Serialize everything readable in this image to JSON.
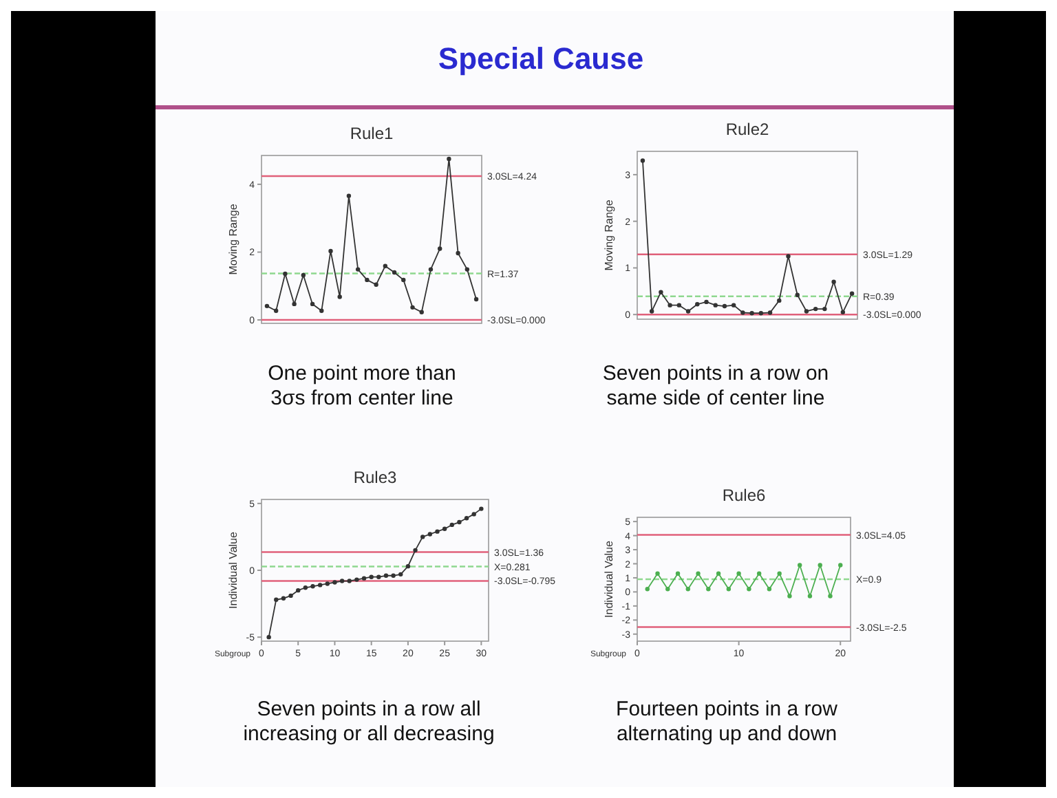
{
  "chart_data": [
    {
      "type": "line",
      "title": "Rule1",
      "ylabel": "Moving Range",
      "annotations": [
        "Special Cause",
        "One point more than",
        "3σs from center line"
      ],
      "categories": [
        null,
        null,
        null,
        null,
        null,
        null,
        null,
        null,
        null,
        null,
        null,
        null,
        null,
        null,
        null,
        null,
        null,
        null,
        null,
        null,
        null,
        null,
        null,
        null
      ],
      "ylim": [
        -0.1,
        4.85
      ],
      "yticks": [
        0,
        2,
        4
      ],
      "marker": "circle",
      "series": [
        {
          "color": "#333333",
          "values": [
            0.41,
            0.27,
            1.36,
            0.47,
            1.32,
            0.47,
            0.27,
            2.03,
            0.68,
            3.66,
            1.49,
            1.18,
            1.04,
            1.59,
            1.4,
            1.18,
            0.37,
            0.23,
            1.49,
            2.1,
            4.75,
            1.97,
            1.49,
            0.61
          ]
        }
      ],
      "ref_lines": [
        {
          "axis": "y",
          "value": 4.24,
          "label": "3.0SL=4.24",
          "color": "#e0607a",
          "line_style": "solid"
        },
        {
          "axis": "y",
          "value": 1.37,
          "label": "R=1.37",
          "color": "#8fd88f",
          "line_style": "dashed"
        },
        {
          "axis": "y",
          "value": 0,
          "label": "-3.0SL=0.000",
          "color": "#e0607a",
          "line_style": "solid"
        }
      ]
    },
    {
      "type": "line",
      "title": "Rule2",
      "ylabel": "Moving Range",
      "annotations": [
        "Seven points in a row on",
        "same side of center line"
      ],
      "categories": [
        null,
        null,
        null,
        null,
        null,
        null,
        null,
        null,
        null,
        null,
        null,
        null,
        null,
        null,
        null,
        null,
        null,
        null,
        null,
        null,
        null,
        null,
        null,
        null
      ],
      "ylim": [
        -0.1,
        3.5
      ],
      "yticks": [
        0,
        1,
        2,
        3
      ],
      "marker": "circle",
      "series": [
        {
          "color": "#333333",
          "values": [
            3.3,
            0.07,
            0.48,
            0.2,
            0.2,
            0.07,
            0.22,
            0.27,
            0.2,
            0.18,
            0.2,
            0.04,
            0.03,
            0.03,
            0.04,
            0.3,
            1.25,
            0.42,
            0.07,
            0.12,
            0.12,
            0.7,
            0.05,
            0.45
          ]
        }
      ],
      "ref_lines": [
        {
          "axis": "y",
          "value": 1.29,
          "label": "3.0SL=1.29",
          "color": "#e0607a",
          "line_style": "solid"
        },
        {
          "axis": "y",
          "value": 0.39,
          "label": "R=0.39",
          "color": "#8fd88f",
          "line_style": "dashed"
        },
        {
          "axis": "y",
          "value": 0,
          "label": "-3.0SL=0.000",
          "color": "#e0607a",
          "line_style": "solid"
        }
      ]
    },
    {
      "type": "line",
      "title": "Rule3",
      "ylabel": "Individual Value",
      "xlabel": "Subgroup",
      "annotations": [
        "Seven points in a row all",
        "increasing or all decreasing"
      ],
      "x": [
        1,
        2,
        3,
        4,
        5,
        6,
        7,
        8,
        9,
        10,
        11,
        12,
        13,
        14,
        15,
        16,
        17,
        18,
        19,
        20,
        21,
        22,
        23,
        24,
        25,
        26,
        27,
        28,
        29,
        30
      ],
      "xlim": [
        0,
        31
      ],
      "xticks": [
        0,
        5,
        10,
        15,
        20,
        25,
        30
      ],
      "ylim": [
        -5.3,
        5.3
      ],
      "yticks": [
        -5,
        0,
        5
      ],
      "marker": "circle",
      "series": [
        {
          "color": "#333333",
          "values": [
            -5.0,
            -2.2,
            -2.1,
            -1.9,
            -1.5,
            -1.3,
            -1.2,
            -1.1,
            -1.0,
            -0.9,
            -0.8,
            -0.8,
            -0.7,
            -0.6,
            -0.5,
            -0.5,
            -0.4,
            -0.4,
            -0.3,
            0.3,
            1.5,
            2.5,
            2.7,
            2.9,
            3.1,
            3.4,
            3.6,
            3.9,
            4.2,
            4.6
          ]
        }
      ],
      "ref_lines": [
        {
          "axis": "y",
          "value": 1.36,
          "label": "3.0SL=1.36",
          "color": "#e0607a",
          "line_style": "solid"
        },
        {
          "axis": "y",
          "value": 0.281,
          "label": "X=0.281",
          "color": "#8fd88f",
          "line_style": "dashed"
        },
        {
          "axis": "y",
          "value": -0.795,
          "label": "-3.0SL=-0.795",
          "color": "#e0607a",
          "line_style": "solid"
        }
      ]
    },
    {
      "type": "line",
      "title": "Rule6",
      "ylabel": "Individual Value",
      "xlabel": "Subgroup",
      "annotations": [
        "Fourteen points in a row",
        "alternating up and down"
      ],
      "x": [
        1,
        2,
        3,
        4,
        5,
        6,
        7,
        8,
        9,
        10,
        11,
        12,
        13,
        14,
        15,
        16,
        17,
        18,
        19,
        20
      ],
      "xlim": [
        0,
        21
      ],
      "xticks": [
        0,
        10,
        20
      ],
      "ylim": [
        -3.5,
        5.3
      ],
      "yticks": [
        -3,
        -2,
        -1,
        0,
        1,
        2,
        3,
        4,
        5
      ],
      "marker": "circle",
      "series": [
        {
          "color": "#4caf50",
          "values": [
            0.2,
            1.3,
            0.2,
            1.3,
            0.2,
            1.3,
            0.2,
            1.3,
            0.2,
            1.3,
            0.2,
            1.3,
            0.2,
            1.3,
            -0.3,
            1.9,
            -0.3,
            1.9,
            -0.3,
            1.9
          ]
        }
      ],
      "ref_lines": [
        {
          "axis": "y",
          "value": 4.05,
          "label": "3.0SL=4.05",
          "color": "#e0607a",
          "line_style": "solid"
        },
        {
          "axis": "y",
          "value": 0.9,
          "label": "X=0.9",
          "color": "#8fd88f",
          "line_style": "dashed"
        },
        {
          "axis": "y",
          "value": -2.5,
          "label": "-3.0SL=-2.5",
          "color": "#e0607a",
          "line_style": "solid"
        }
      ]
    }
  ]
}
